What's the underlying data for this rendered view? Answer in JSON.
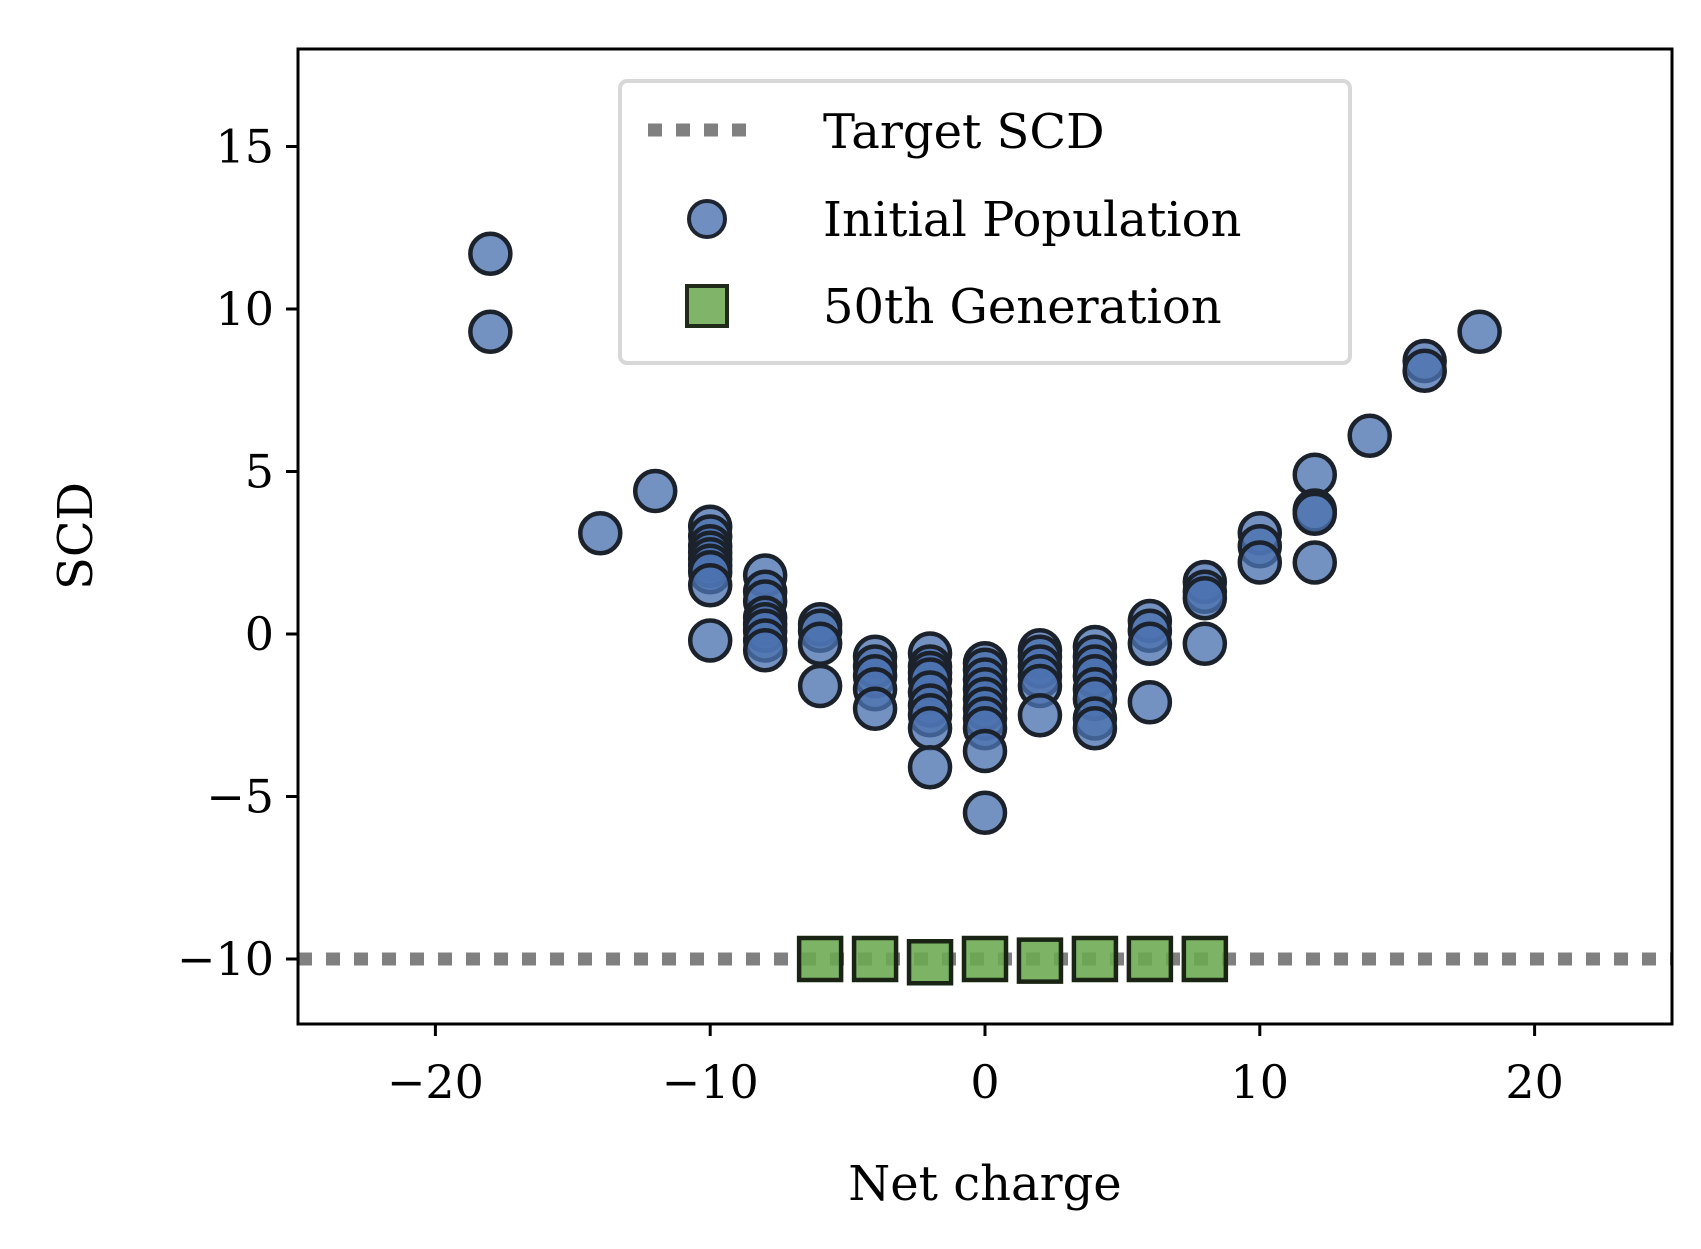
{
  "chart_data": {
    "type": "scatter",
    "title": "",
    "xlabel": "Net charge",
    "ylabel": "SCD",
    "xlim": [
      -25,
      25
    ],
    "ylim": [
      -12,
      18
    ],
    "xticks": [
      -20,
      -10,
      0,
      10,
      20
    ],
    "xtick_labels": [
      "−20",
      "−10",
      "0",
      "10",
      "20"
    ],
    "yticks": [
      -10,
      -5,
      0,
      5,
      10,
      15
    ],
    "ytick_labels": [
      "−10",
      "−5",
      "0",
      "5",
      "10",
      "15"
    ],
    "grid": false,
    "legend_position": "top-center",
    "reference_line": {
      "name": "Target SCD",
      "y": -10,
      "style": "dotted",
      "color": "#808080"
    },
    "series": [
      {
        "name": "Initial Population",
        "marker": "circle",
        "color": "#4c72b0",
        "points": [
          [
            -18,
            11.7
          ],
          [
            -18,
            9.3
          ],
          [
            -14,
            3.1
          ],
          [
            -12,
            4.4
          ],
          [
            -10,
            3.3
          ],
          [
            -10,
            3.0
          ],
          [
            -10,
            2.7
          ],
          [
            -10,
            2.5
          ],
          [
            -10,
            2.3
          ],
          [
            -10,
            2.1
          ],
          [
            -10,
            1.9
          ],
          [
            -10,
            1.5
          ],
          [
            -10,
            -0.2
          ],
          [
            -8,
            1.8
          ],
          [
            -8,
            1.3
          ],
          [
            -8,
            1.0
          ],
          [
            -8,
            0.5
          ],
          [
            -8,
            0.3
          ],
          [
            -8,
            0.1
          ],
          [
            -8,
            -0.2
          ],
          [
            -8,
            -0.5
          ],
          [
            -6,
            0.3
          ],
          [
            -6,
            0.1
          ],
          [
            -6,
            -0.3
          ],
          [
            -6,
            -1.6
          ],
          [
            -4,
            -0.7
          ],
          [
            -4,
            -1.0
          ],
          [
            -4,
            -1.3
          ],
          [
            -4,
            -1.7
          ],
          [
            -4,
            -2.3
          ],
          [
            -2,
            -0.6
          ],
          [
            -2,
            -1.0
          ],
          [
            -2,
            -1.2
          ],
          [
            -2,
            -1.4
          ],
          [
            -2,
            -1.8
          ],
          [
            -2,
            -2.2
          ],
          [
            -2,
            -2.5
          ],
          [
            -2,
            -2.9
          ],
          [
            -2,
            -4.1
          ],
          [
            0,
            -0.9
          ],
          [
            0,
            -1.1
          ],
          [
            0,
            -1.4
          ],
          [
            0,
            -1.7
          ],
          [
            0,
            -2.0
          ],
          [
            0,
            -2.3
          ],
          [
            0,
            -2.6
          ],
          [
            0,
            -2.9
          ],
          [
            0,
            -3.6
          ],
          [
            0,
            -5.5
          ],
          [
            2,
            -0.5
          ],
          [
            2,
            -0.7
          ],
          [
            2,
            -1.0
          ],
          [
            2,
            -1.3
          ],
          [
            2,
            -1.6
          ],
          [
            2,
            -2.5
          ],
          [
            4,
            -0.4
          ],
          [
            4,
            -0.7
          ],
          [
            4,
            -1.0
          ],
          [
            4,
            -1.3
          ],
          [
            4,
            -1.7
          ],
          [
            4,
            -2.0
          ],
          [
            4,
            -2.6
          ],
          [
            4,
            -2.9
          ],
          [
            6,
            0.4
          ],
          [
            6,
            0.1
          ],
          [
            6,
            -0.3
          ],
          [
            6,
            -2.1
          ],
          [
            8,
            1.6
          ],
          [
            8,
            1.3
          ],
          [
            8,
            1.1
          ],
          [
            8,
            -0.3
          ],
          [
            10,
            3.1
          ],
          [
            10,
            2.7
          ],
          [
            10,
            2.2
          ],
          [
            12,
            4.9
          ],
          [
            12,
            3.8
          ],
          [
            12,
            3.7
          ],
          [
            12,
            2.2
          ],
          [
            14,
            6.1
          ],
          [
            16,
            8.4
          ],
          [
            16,
            8.1
          ],
          [
            18,
            9.3
          ]
        ]
      },
      {
        "name": "50th Generation",
        "marker": "square",
        "color": "#6aa84f",
        "points": [
          [
            -6,
            -10.0
          ],
          [
            -4,
            -10.0
          ],
          [
            -2,
            -10.1
          ],
          [
            0,
            -10.0
          ],
          [
            2,
            -10.05
          ],
          [
            4,
            -10.0
          ],
          [
            6,
            -10.0
          ],
          [
            8,
            -10.0
          ]
        ]
      }
    ],
    "legend": [
      {
        "label": "Target SCD",
        "kind": "line"
      },
      {
        "label": "Initial Population",
        "kind": "circle"
      },
      {
        "label": "50th Generation",
        "kind": "square"
      }
    ]
  }
}
